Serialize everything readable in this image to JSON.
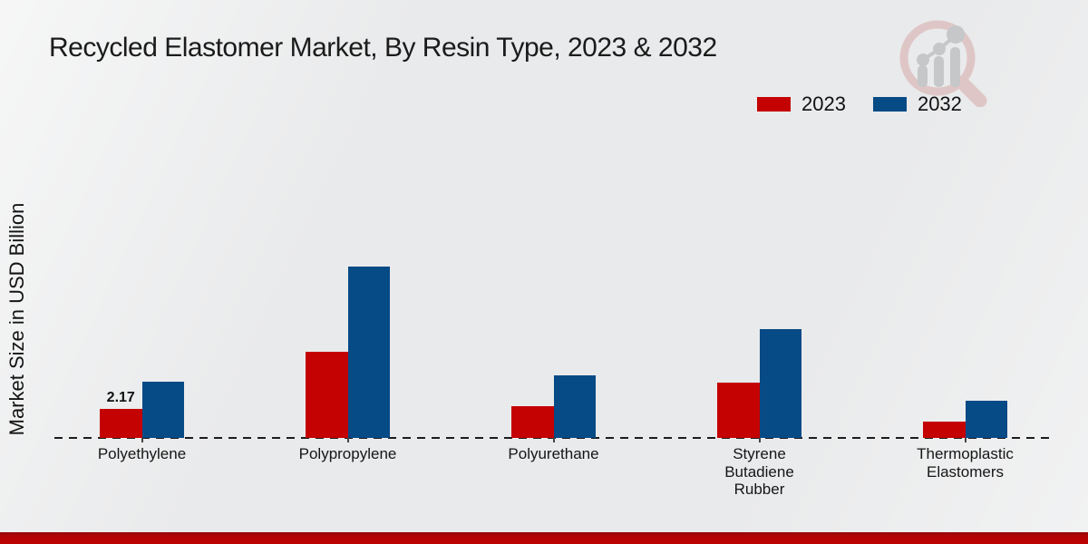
{
  "page": {
    "title": "Recycled Elastomer Market, By Resin Type, 2023 & 2032"
  },
  "chart_data": {
    "type": "bar",
    "title": "Recycled Elastomer Market, By Resin Type, 2023 & 2032",
    "xlabel": "",
    "ylabel": "Market Size in USD Billion",
    "categories": [
      "Polyethylene",
      "Polypropylene",
      "Polyurethane",
      "Styrene Butadiene Rubber",
      "Thermoplastic Elastomers"
    ],
    "series": [
      {
        "name": "2023",
        "color": "#c40202",
        "values": [
          2.17,
          6.44,
          2.37,
          4.16,
          1.22
        ]
      },
      {
        "name": "2032",
        "color": "#064a86",
        "values": [
          4.2,
          12.84,
          4.66,
          8.14,
          2.78
        ]
      }
    ],
    "annotations": [
      {
        "category": "Polyethylene",
        "series": "2023",
        "text": "2.17"
      }
    ],
    "ylim": [
      0,
      14
    ],
    "grid": false,
    "legend_position": "top-right",
    "baseline_style": "dashed"
  },
  "branding": {
    "logo_icon": "magnifier-growth-chart",
    "footer_bar_color": "#b30404"
  }
}
